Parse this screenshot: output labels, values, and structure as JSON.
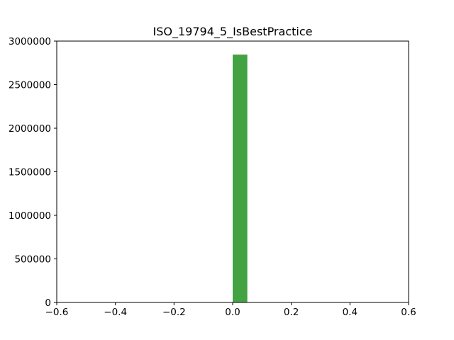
{
  "chart_data": {
    "type": "bar",
    "title": "ISO_19794_5_IsBestPractice",
    "xlabel": "",
    "ylabel": "",
    "xlim": [
      -0.6,
      0.6
    ],
    "ylim": [
      0,
      3000000
    ],
    "xticks": [
      -0.6,
      -0.4,
      -0.2,
      0.0,
      0.2,
      0.4,
      0.6
    ],
    "xtick_labels": [
      "−0.6",
      "−0.4",
      "−0.2",
      "0.0",
      "0.2",
      "0.4",
      "0.6"
    ],
    "yticks": [
      0,
      500000,
      1000000,
      1500000,
      2000000,
      2500000,
      3000000
    ],
    "ytick_labels": [
      "0",
      "500000",
      "1000000",
      "1500000",
      "2000000",
      "2500000",
      "3000000"
    ],
    "bars": [
      {
        "x_start": 0.0,
        "x_end": 0.05,
        "value": 2845000
      }
    ],
    "bar_color": "#43a343",
    "grid": false,
    "legend": "none"
  }
}
